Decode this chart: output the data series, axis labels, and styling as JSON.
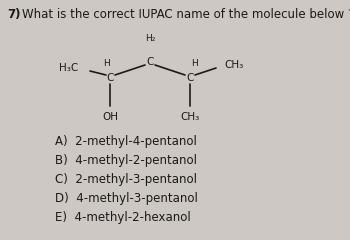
{
  "question_number": "7)",
  "question_text": "What is the correct IUPAC name of the molecule below ?",
  "background_color": "#cdc8c3",
  "text_color": "#1a1a1a",
  "options": [
    "A)  2-methyl-4-pentanol",
    "B)  4-methyl-2-pentanol",
    "C)  2-methyl-3-pentanol",
    "D)  4-methyl-3-pentanol",
    "E)  4-methyl-2-hexanol"
  ],
  "mol": {
    "H3C": "H₃C",
    "H_left": "H",
    "C_left": "C",
    "OH": "OH",
    "H2": "H₂",
    "C_mid": "C",
    "H_right": "H",
    "C_right": "C",
    "CH3_top": "CH₃",
    "CH3_bot": "CH₃"
  },
  "bond_color": "#1a1a1a",
  "bond_lw": 1.2,
  "fs_question": 8.5,
  "fs_mol": 7.5,
  "fs_options": 8.5
}
